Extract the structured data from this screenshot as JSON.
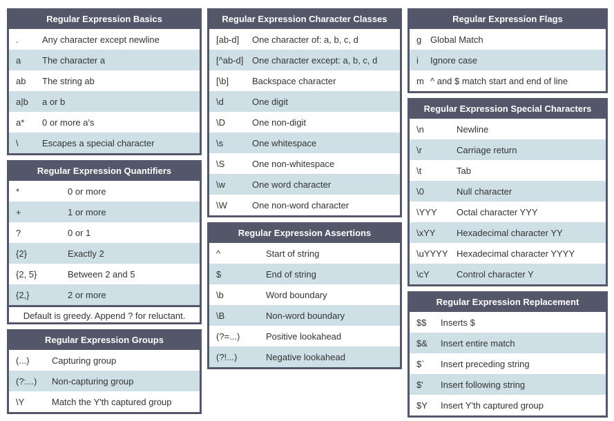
{
  "theme": {
    "page_bg": "#ffffff",
    "header_bg": "#54566a",
    "header_text": "#ffffff",
    "row_bg": "#ffffff",
    "row_alt_bg": "#cee0e6",
    "body_text": "#333333"
  },
  "tables": {
    "basics": {
      "title": "Regular Expression Basics",
      "rows": [
        [
          ".",
          "Any character except newline"
        ],
        [
          "a",
          "The character a"
        ],
        [
          "ab",
          "The string ab"
        ],
        [
          "a|b",
          "a or b"
        ],
        [
          "a*",
          "0 or more a's"
        ],
        [
          "\\",
          "Escapes a special character"
        ]
      ]
    },
    "quantifiers": {
      "title": "Regular Expression Quantifiers",
      "rows": [
        [
          "*",
          "0 or more"
        ],
        [
          "+",
          "1 or more"
        ],
        [
          "?",
          "0 or 1"
        ],
        [
          "{2}",
          "Exactly 2"
        ],
        [
          "{2, 5}",
          "Between 2 and 5"
        ],
        [
          "{2,}",
          "2 or more"
        ]
      ],
      "footer": "Default is greedy. Append ? for reluctant."
    },
    "groups": {
      "title": "Regular Expression Groups",
      "rows": [
        [
          "(...)",
          "Capturing group"
        ],
        [
          "(?:...)",
          "Non-capturing group"
        ],
        [
          "\\Y",
          "Match the Y'th captured group"
        ]
      ]
    },
    "classes": {
      "title": "Regular Expression Character Classes",
      "rows": [
        [
          "[ab-d]",
          "One character of: a, b, c, d"
        ],
        [
          "[^ab-d]",
          "One character except: a, b, c, d"
        ],
        [
          "[\\b]",
          "Backspace character"
        ],
        [
          "\\d",
          "One digit"
        ],
        [
          "\\D",
          "One non-digit"
        ],
        [
          "\\s",
          "One whitespace"
        ],
        [
          "\\S",
          "One non-whitespace"
        ],
        [
          "\\w",
          "One word character"
        ],
        [
          "\\W",
          "One non-word character"
        ]
      ]
    },
    "assertions": {
      "title": "Regular Expression Assertions",
      "rows": [
        [
          "^",
          "Start of string"
        ],
        [
          "$",
          "End of string"
        ],
        [
          "\\b",
          "Word boundary"
        ],
        [
          "\\B",
          "Non-word boundary"
        ],
        [
          "(?=...)",
          "Positive lookahead"
        ],
        [
          "(?!...)",
          "Negative lookahead"
        ]
      ]
    },
    "flags": {
      "title": "Regular Expression Flags",
      "rows": [
        [
          "g",
          "Global Match"
        ],
        [
          "i",
          "Ignore case"
        ],
        [
          "m",
          "^ and $ match start and end of line"
        ]
      ]
    },
    "special": {
      "title": "Regular Expression Special Characters",
      "rows": [
        [
          "\\n",
          "Newline"
        ],
        [
          "\\r",
          "Carriage return"
        ],
        [
          "\\t",
          "Tab"
        ],
        [
          "\\0",
          "Null character"
        ],
        [
          "\\YYY",
          "Octal character YYY"
        ],
        [
          "\\xYY",
          "Hexadecimal character YY"
        ],
        [
          "\\uYYYY",
          "Hexadecimal character YYYY"
        ],
        [
          "\\cY",
          "Control character Y"
        ]
      ]
    },
    "replacement": {
      "title": "Regular Expression Replacement",
      "rows": [
        [
          "$$",
          "Inserts $"
        ],
        [
          "$&",
          "Insert entire match"
        ],
        [
          "$`",
          "Insert preceding string"
        ],
        [
          "$'",
          "Insert following string"
        ],
        [
          "$Y",
          "Insert Y'th captured group"
        ]
      ]
    }
  }
}
